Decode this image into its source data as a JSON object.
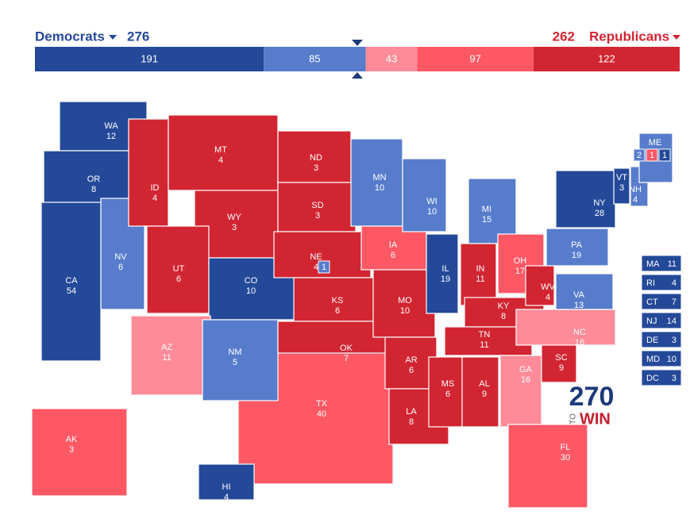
{
  "header": {
    "dem_label": "Democrats",
    "dem_total": 276,
    "rep_total": 262,
    "rep_label": "Republicans",
    "segments": [
      {
        "value": 191,
        "color": "#244999"
      },
      {
        "value": 85,
        "color": "#577ccc"
      },
      {
        "value": 43,
        "color": "#ff8b98"
      },
      {
        "value": 97,
        "color": "#ff5865"
      },
      {
        "value": 122,
        "color": "#d22532"
      }
    ]
  },
  "states": [
    {
      "label": "TX",
      "ev": 40,
      "color": "#ff5865"
    },
    {
      "label": "WA",
      "ev": 12,
      "color": "#244999"
    },
    {
      "label": "OR",
      "ev": 8,
      "color": "#244999"
    },
    {
      "label": "CA",
      "ev": 54,
      "color": "#244999"
    },
    {
      "label": "NV",
      "ev": 6,
      "color": "#577ccc"
    },
    {
      "label": "ID",
      "ev": 4,
      "color": "#d22532"
    },
    {
      "label": "MT",
      "ev": 4,
      "color": "#d22532"
    },
    {
      "label": "WY",
      "ev": 3,
      "color": "#d22532"
    },
    {
      "label": "UT",
      "ev": 6,
      "color": "#d22532"
    },
    {
      "label": "CO",
      "ev": 10,
      "color": "#244999"
    },
    {
      "label": "AZ",
      "ev": 11,
      "color": "#ff8b98"
    },
    {
      "label": "NM",
      "ev": 5,
      "color": "#577ccc"
    },
    {
      "label": "ND",
      "ev": 3,
      "color": "#d22532"
    },
    {
      "label": "SD",
      "ev": 3,
      "color": "#d22532"
    },
    {
      "label": "NE",
      "ev": 4,
      "color": "#d22532",
      "districts": [
        {
          "ev": 1,
          "color": "#577ccc"
        }
      ]
    },
    {
      "label": "KS",
      "ev": 6,
      "color": "#d22532"
    },
    {
      "label": "OK",
      "ev": 7,
      "color": "#d22532"
    },
    {
      "label": "MN",
      "ev": 10,
      "color": "#577ccc"
    },
    {
      "label": "IA",
      "ev": 6,
      "color": "#ff5865"
    },
    {
      "label": "MO",
      "ev": 10,
      "color": "#d22532"
    },
    {
      "label": "AR",
      "ev": 6,
      "color": "#d22532"
    },
    {
      "label": "LA",
      "ev": 8,
      "color": "#d22532"
    },
    {
      "label": "WI",
      "ev": 10,
      "color": "#577ccc"
    },
    {
      "label": "IL",
      "ev": 19,
      "color": "#244999"
    },
    {
      "label": "MI",
      "ev": 15,
      "color": "#577ccc"
    },
    {
      "label": "IN",
      "ev": 11,
      "color": "#d22532"
    },
    {
      "label": "OH",
      "ev": 17,
      "color": "#ff5865"
    },
    {
      "label": "KY",
      "ev": 8,
      "color": "#d22532"
    },
    {
      "label": "TN",
      "ev": 11,
      "color": "#d22532"
    },
    {
      "label": "MS",
      "ev": 6,
      "color": "#d22532"
    },
    {
      "label": "AL",
      "ev": 9,
      "color": "#d22532"
    },
    {
      "label": "GA",
      "ev": 16,
      "color": "#ff8b98"
    },
    {
      "label": "FL",
      "ev": 30,
      "color": "#ff5865"
    },
    {
      "label": "SC",
      "ev": 9,
      "color": "#d22532"
    },
    {
      "label": "NC",
      "ev": 16,
      "color": "#ff8b98"
    },
    {
      "label": "VA",
      "ev": 13,
      "color": "#577ccc"
    },
    {
      "label": "WV",
      "ev": 4,
      "color": "#d22532"
    },
    {
      "label": "PA",
      "ev": 19,
      "color": "#577ccc"
    },
    {
      "label": "NY",
      "ev": 28,
      "color": "#244999"
    },
    {
      "label": "VT",
      "ev": 3,
      "color": "#244999"
    },
    {
      "label": "NH",
      "ev": 4,
      "color": "#577ccc"
    },
    {
      "label": "ME",
      "color": "#577ccc",
      "districts": [
        {
          "ev": 2,
          "color": "#577ccc"
        },
        {
          "ev": 1,
          "color": "#ff5865"
        },
        {
          "ev": 1,
          "color": "#244999"
        }
      ]
    },
    {
      "label": "AK",
      "ev": 3,
      "color": "#ff5865"
    },
    {
      "label": "HI",
      "ev": 4,
      "color": "#244999"
    }
  ],
  "small_states": [
    {
      "label": "MA",
      "ev": 11
    },
    {
      "label": "RI",
      "ev": 4
    },
    {
      "label": "CT",
      "ev": 7
    },
    {
      "label": "NJ",
      "ev": 14
    },
    {
      "label": "DE",
      "ev": 3
    },
    {
      "label": "MD",
      "ev": 10
    },
    {
      "label": "DC",
      "ev": 3
    }
  ],
  "small_color": "#244999",
  "logo": {
    "number": "270",
    "to": "TO",
    "win": "WIN"
  }
}
